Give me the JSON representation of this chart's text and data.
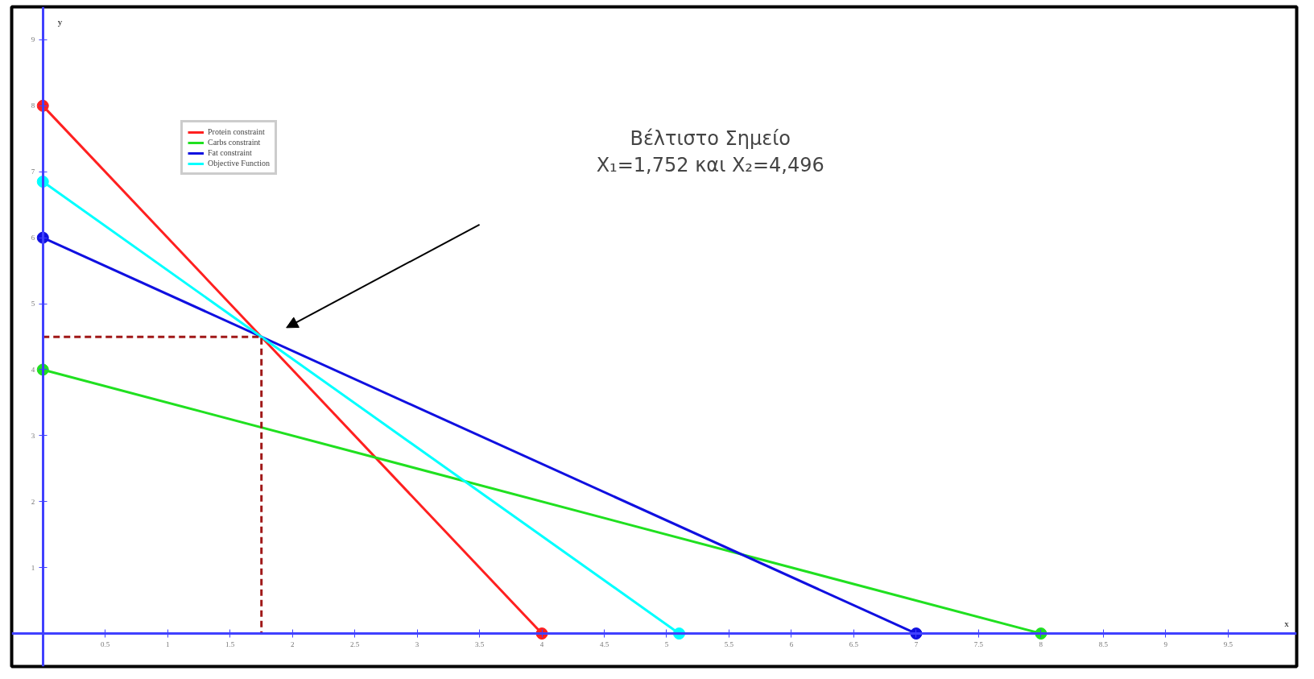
{
  "chart_data": {
    "type": "line",
    "xlabel": "x",
    "ylabel": "y",
    "xlim": [
      -0.25,
      10.05
    ],
    "ylim": [
      -0.5,
      9.5
    ],
    "xticks": [
      0.5,
      1,
      1.5,
      2,
      2.5,
      3,
      3.5,
      4,
      4.5,
      5,
      5.5,
      6,
      6.5,
      7,
      7.5,
      8,
      8.5,
      9,
      9.5
    ],
    "yticks": [
      1,
      2,
      3,
      4,
      5,
      6,
      7,
      8,
      9
    ],
    "grid": false,
    "legend": "top left",
    "marker": "circle",
    "line_style": "solid",
    "series": [
      {
        "name": "Protein constraint",
        "color": "#ff2020",
        "x": [
          0,
          4
        ],
        "values": [
          8,
          0
        ]
      },
      {
        "name": "Carbs constraint",
        "color": "#20e020",
        "x": [
          0,
          8
        ],
        "values": [
          4,
          0
        ]
      },
      {
        "name": "Fat constraint",
        "color": "#1010e0",
        "x": [
          0,
          7
        ],
        "values": [
          6,
          0
        ]
      },
      {
        "name": "Objective Function",
        "color": "#00ffff",
        "x": [
          0,
          5.1
        ],
        "values": [
          6.85,
          0
        ]
      },
      {
        "color": "#a01818",
        "x": [
          0,
          1.752,
          1.752
        ],
        "values": [
          4.496,
          4.496,
          0
        ],
        "marker": "none",
        "line_style": "dashed"
      }
    ],
    "annotations": [
      "Βέλτιστο Σημείο\nX₁=1,752 και X₂=4,496"
    ]
  }
}
